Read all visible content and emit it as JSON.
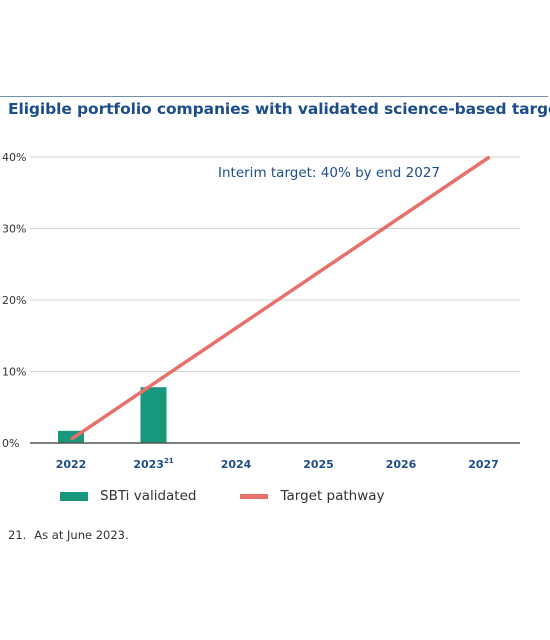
{
  "title": "Eligible portfolio companies with validated science-based target",
  "colors": {
    "bar": "#17977b",
    "line": "#e8706a",
    "title": "#1d4e89",
    "grid": "#d0d0d0"
  },
  "chart_data": {
    "type": "bar",
    "categories": [
      "2022",
      "2023",
      "2024",
      "2025",
      "2026",
      "2027"
    ],
    "category_superscripts": [
      "",
      "21",
      "",
      "",
      "",
      ""
    ],
    "ylim": [
      0,
      40
    ],
    "y_ticks": [
      {
        "value": 0,
        "label": "0%"
      },
      {
        "value": 10,
        "label": "10%"
      },
      {
        "value": 20,
        "label": "20%"
      },
      {
        "value": 30,
        "label": "30%"
      },
      {
        "value": 40,
        "label": "40%"
      }
    ],
    "grid": true,
    "series": [
      {
        "name": "SBTi validated",
        "type": "bar",
        "values": [
          1.7,
          7.8,
          null,
          null,
          null,
          null
        ]
      },
      {
        "name": "Target pathway",
        "type": "line",
        "points": [
          {
            "x": "2022",
            "y": 0.5
          },
          {
            "x": "2027",
            "y": 40
          }
        ]
      }
    ],
    "annotation": "Interim target: 40% by end 2027",
    "legend_position": "bottom"
  },
  "footnote": {
    "number": "21.",
    "text": "As at June 2023."
  }
}
